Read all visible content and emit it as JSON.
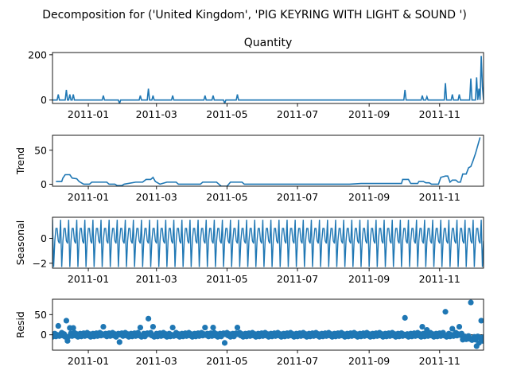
{
  "figure": {
    "title": "Decomposition for ('United Kingdom', 'PIG KEYRING WITH LIGHT & SOUND ')"
  },
  "chart_data": [
    {
      "type": "line",
      "title": "Quantity",
      "ylabel": "",
      "x_range": [
        "2010-12-01",
        "2011-12-09"
      ],
      "ylim": [
        -15,
        210
      ],
      "yticks": [
        {
          "value": 0,
          "label": "0"
        },
        {
          "value": 200,
          "label": "200"
        }
      ],
      "xticks": [
        {
          "date": "2011-01-01",
          "label": "2011-01"
        },
        {
          "date": "2011-03-01",
          "label": "2011-03"
        },
        {
          "date": "2011-05-01",
          "label": "2011-05"
        },
        {
          "date": "2011-07-01",
          "label": "2011-07"
        },
        {
          "date": "2011-09-01",
          "label": "2011-09"
        },
        {
          "date": "2011-11-01",
          "label": "2011-11"
        }
      ],
      "color": "#1f77b4",
      "baseline": 0,
      "spikes": [
        {
          "date": "2010-12-06",
          "value": 25
        },
        {
          "date": "2010-12-13",
          "value": 45
        },
        {
          "date": "2010-12-16",
          "value": 25
        },
        {
          "date": "2010-12-19",
          "value": 25
        },
        {
          "date": "2011-01-14",
          "value": 20
        },
        {
          "date": "2011-01-28",
          "value": -15
        },
        {
          "date": "2011-02-15",
          "value": 20
        },
        {
          "date": "2011-02-22",
          "value": 50
        },
        {
          "date": "2011-02-26",
          "value": 20
        },
        {
          "date": "2011-03-15",
          "value": 20
        },
        {
          "date": "2011-04-12",
          "value": 20
        },
        {
          "date": "2011-04-19",
          "value": 20
        },
        {
          "date": "2011-04-29",
          "value": -15
        },
        {
          "date": "2011-05-10",
          "value": 25
        },
        {
          "date": "2011-10-02",
          "value": 45
        },
        {
          "date": "2011-10-17",
          "value": 20
        },
        {
          "date": "2011-10-21",
          "value": 15
        },
        {
          "date": "2011-11-06",
          "value": 75
        },
        {
          "date": "2011-11-12",
          "value": 25
        },
        {
          "date": "2011-11-18",
          "value": 25
        },
        {
          "date": "2011-11-28",
          "value": 95
        },
        {
          "date": "2011-12-03",
          "value": 100
        },
        {
          "date": "2011-12-05",
          "value": 50
        },
        {
          "date": "2011-12-07",
          "value": 195
        },
        {
          "date": "2011-12-08",
          "value": 60
        }
      ]
    },
    {
      "type": "line",
      "title": "",
      "ylabel": "Trend",
      "x_range": [
        "2010-12-01",
        "2011-12-09"
      ],
      "ylim": [
        -3,
        72
      ],
      "yticks": [
        {
          "value": 0,
          "label": "0"
        },
        {
          "value": 50,
          "label": "50"
        }
      ],
      "xticks": [
        {
          "date": "2011-01-01",
          "label": "2011-01"
        },
        {
          "date": "2011-03-01",
          "label": "2011-03"
        },
        {
          "date": "2011-05-01",
          "label": "2011-05"
        },
        {
          "date": "2011-07-01",
          "label": "2011-07"
        },
        {
          "date": "2011-09-01",
          "label": "2011-09"
        },
        {
          "date": "2011-11-01",
          "label": "2011-11"
        }
      ],
      "color": "#1f77b4",
      "points": [
        [
          "2010-12-04",
          4
        ],
        [
          "2010-12-09",
          4
        ],
        [
          "2010-12-10",
          9
        ],
        [
          "2010-12-12",
          14
        ],
        [
          "2010-12-16",
          14
        ],
        [
          "2010-12-18",
          9
        ],
        [
          "2010-12-22",
          8
        ],
        [
          "2010-12-24",
          4
        ],
        [
          "2010-12-28",
          0
        ],
        [
          "2011-01-02",
          0
        ],
        [
          "2011-01-04",
          3
        ],
        [
          "2011-01-17",
          3
        ],
        [
          "2011-01-19",
          0
        ],
        [
          "2011-01-24",
          0
        ],
        [
          "2011-01-26",
          -2
        ],
        [
          "2011-01-30",
          -2
        ],
        [
          "2011-02-01",
          0
        ],
        [
          "2011-02-11",
          3
        ],
        [
          "2011-02-17",
          3
        ],
        [
          "2011-02-20",
          7
        ],
        [
          "2011-02-24",
          7
        ],
        [
          "2011-02-26",
          10
        ],
        [
          "2011-02-28",
          4
        ],
        [
          "2011-03-04",
          0
        ],
        [
          "2011-03-10",
          3
        ],
        [
          "2011-03-18",
          3
        ],
        [
          "2011-03-20",
          0
        ],
        [
          "2011-04-08",
          0
        ],
        [
          "2011-04-10",
          3
        ],
        [
          "2011-04-22",
          3
        ],
        [
          "2011-04-24",
          0
        ],
        [
          "2011-04-26",
          -3
        ],
        [
          "2011-05-01",
          -3
        ],
        [
          "2011-05-04",
          3
        ],
        [
          "2011-05-14",
          3
        ],
        [
          "2011-05-16",
          0
        ],
        [
          "2011-08-15",
          0
        ],
        [
          "2011-08-25",
          1
        ],
        [
          "2011-09-29",
          1
        ],
        [
          "2011-09-30",
          7
        ],
        [
          "2011-10-05",
          7
        ],
        [
          "2011-10-07",
          1
        ],
        [
          "2011-10-13",
          1
        ],
        [
          "2011-10-14",
          4
        ],
        [
          "2011-10-18",
          4
        ],
        [
          "2011-10-20",
          2
        ],
        [
          "2011-10-23",
          2
        ],
        [
          "2011-10-25",
          0
        ],
        [
          "2011-10-31",
          0
        ],
        [
          "2011-11-02",
          10
        ],
        [
          "2011-11-06",
          12
        ],
        [
          "2011-11-08",
          12
        ],
        [
          "2011-11-10",
          3
        ],
        [
          "2011-11-12",
          6
        ],
        [
          "2011-11-15",
          6
        ],
        [
          "2011-11-17",
          3
        ],
        [
          "2011-11-19",
          3
        ],
        [
          "2011-11-21",
          15
        ],
        [
          "2011-11-24",
          15
        ],
        [
          "2011-11-26",
          24
        ],
        [
          "2011-11-28",
          26
        ],
        [
          "2011-11-30",
          35
        ],
        [
          "2011-12-02",
          45
        ],
        [
          "2011-12-04",
          57
        ],
        [
          "2011-12-06",
          69
        ]
      ]
    },
    {
      "type": "line",
      "title": "",
      "ylabel": "Seasonal",
      "x_range": [
        "2010-12-01",
        "2011-12-09"
      ],
      "ylim": [
        -2.4,
        1.7
      ],
      "yticks": [
        {
          "value": -2,
          "label": "−2"
        },
        {
          "value": 0,
          "label": "0"
        }
      ],
      "xticks": [
        {
          "date": "2011-01-01",
          "label": "2011-01"
        },
        {
          "date": "2011-03-01",
          "label": "2011-03"
        },
        {
          "date": "2011-05-01",
          "label": "2011-05"
        },
        {
          "date": "2011-07-01",
          "label": "2011-07"
        },
        {
          "date": "2011-09-01",
          "label": "2011-09"
        },
        {
          "date": "2011-11-01",
          "label": "2011-11"
        }
      ],
      "color": "#1f77b4",
      "period_days": 7,
      "weekly_pattern": [
        1.5,
        -2.3,
        -0.2,
        0.8,
        0.8,
        -0.2,
        -0.4
      ]
    },
    {
      "type": "scatter",
      "title": "",
      "ylabel": "Resid",
      "x_range": [
        "2010-12-01",
        "2011-12-09"
      ],
      "ylim": [
        -38,
        88
      ],
      "yticks": [
        {
          "value": 0,
          "label": "0"
        },
        {
          "value": 50,
          "label": "50"
        }
      ],
      "xticks": [
        {
          "date": "2011-01-01",
          "label": "2011-01"
        },
        {
          "date": "2011-03-01",
          "label": "2011-03"
        },
        {
          "date": "2011-05-01",
          "label": "2011-05"
        },
        {
          "date": "2011-07-01",
          "label": "2011-07"
        },
        {
          "date": "2011-09-01",
          "label": "2011-09"
        },
        {
          "date": "2011-11-01",
          "label": "2011-11"
        }
      ],
      "color": "#1f77b4",
      "zero_line": true,
      "outliers": [
        {
          "date": "2010-12-06",
          "value": 22
        },
        {
          "date": "2010-12-13",
          "value": 35
        },
        {
          "date": "2010-12-16",
          "value": 17
        },
        {
          "date": "2010-12-19",
          "value": 17
        },
        {
          "date": "2010-12-14",
          "value": -15
        },
        {
          "date": "2011-01-14",
          "value": 20
        },
        {
          "date": "2011-01-28",
          "value": -18
        },
        {
          "date": "2011-02-15",
          "value": 18
        },
        {
          "date": "2011-02-22",
          "value": 40
        },
        {
          "date": "2011-02-26",
          "value": 20
        },
        {
          "date": "2011-03-15",
          "value": 18
        },
        {
          "date": "2011-04-12",
          "value": 18
        },
        {
          "date": "2011-04-19",
          "value": 18
        },
        {
          "date": "2011-04-29",
          "value": -20
        },
        {
          "date": "2011-05-10",
          "value": 18
        },
        {
          "date": "2011-10-02",
          "value": 42
        },
        {
          "date": "2011-10-17",
          "value": 20
        },
        {
          "date": "2011-10-21",
          "value": 12
        },
        {
          "date": "2011-11-06",
          "value": 57
        },
        {
          "date": "2011-11-12",
          "value": 15
        },
        {
          "date": "2011-11-18",
          "value": 20
        },
        {
          "date": "2011-11-28",
          "value": 80
        },
        {
          "date": "2011-12-03",
          "value": -28
        },
        {
          "date": "2011-12-05",
          "value": -20
        },
        {
          "date": "2011-12-07",
          "value": 35
        },
        {
          "date": "2011-12-08",
          "value": -15
        }
      ]
    }
  ]
}
